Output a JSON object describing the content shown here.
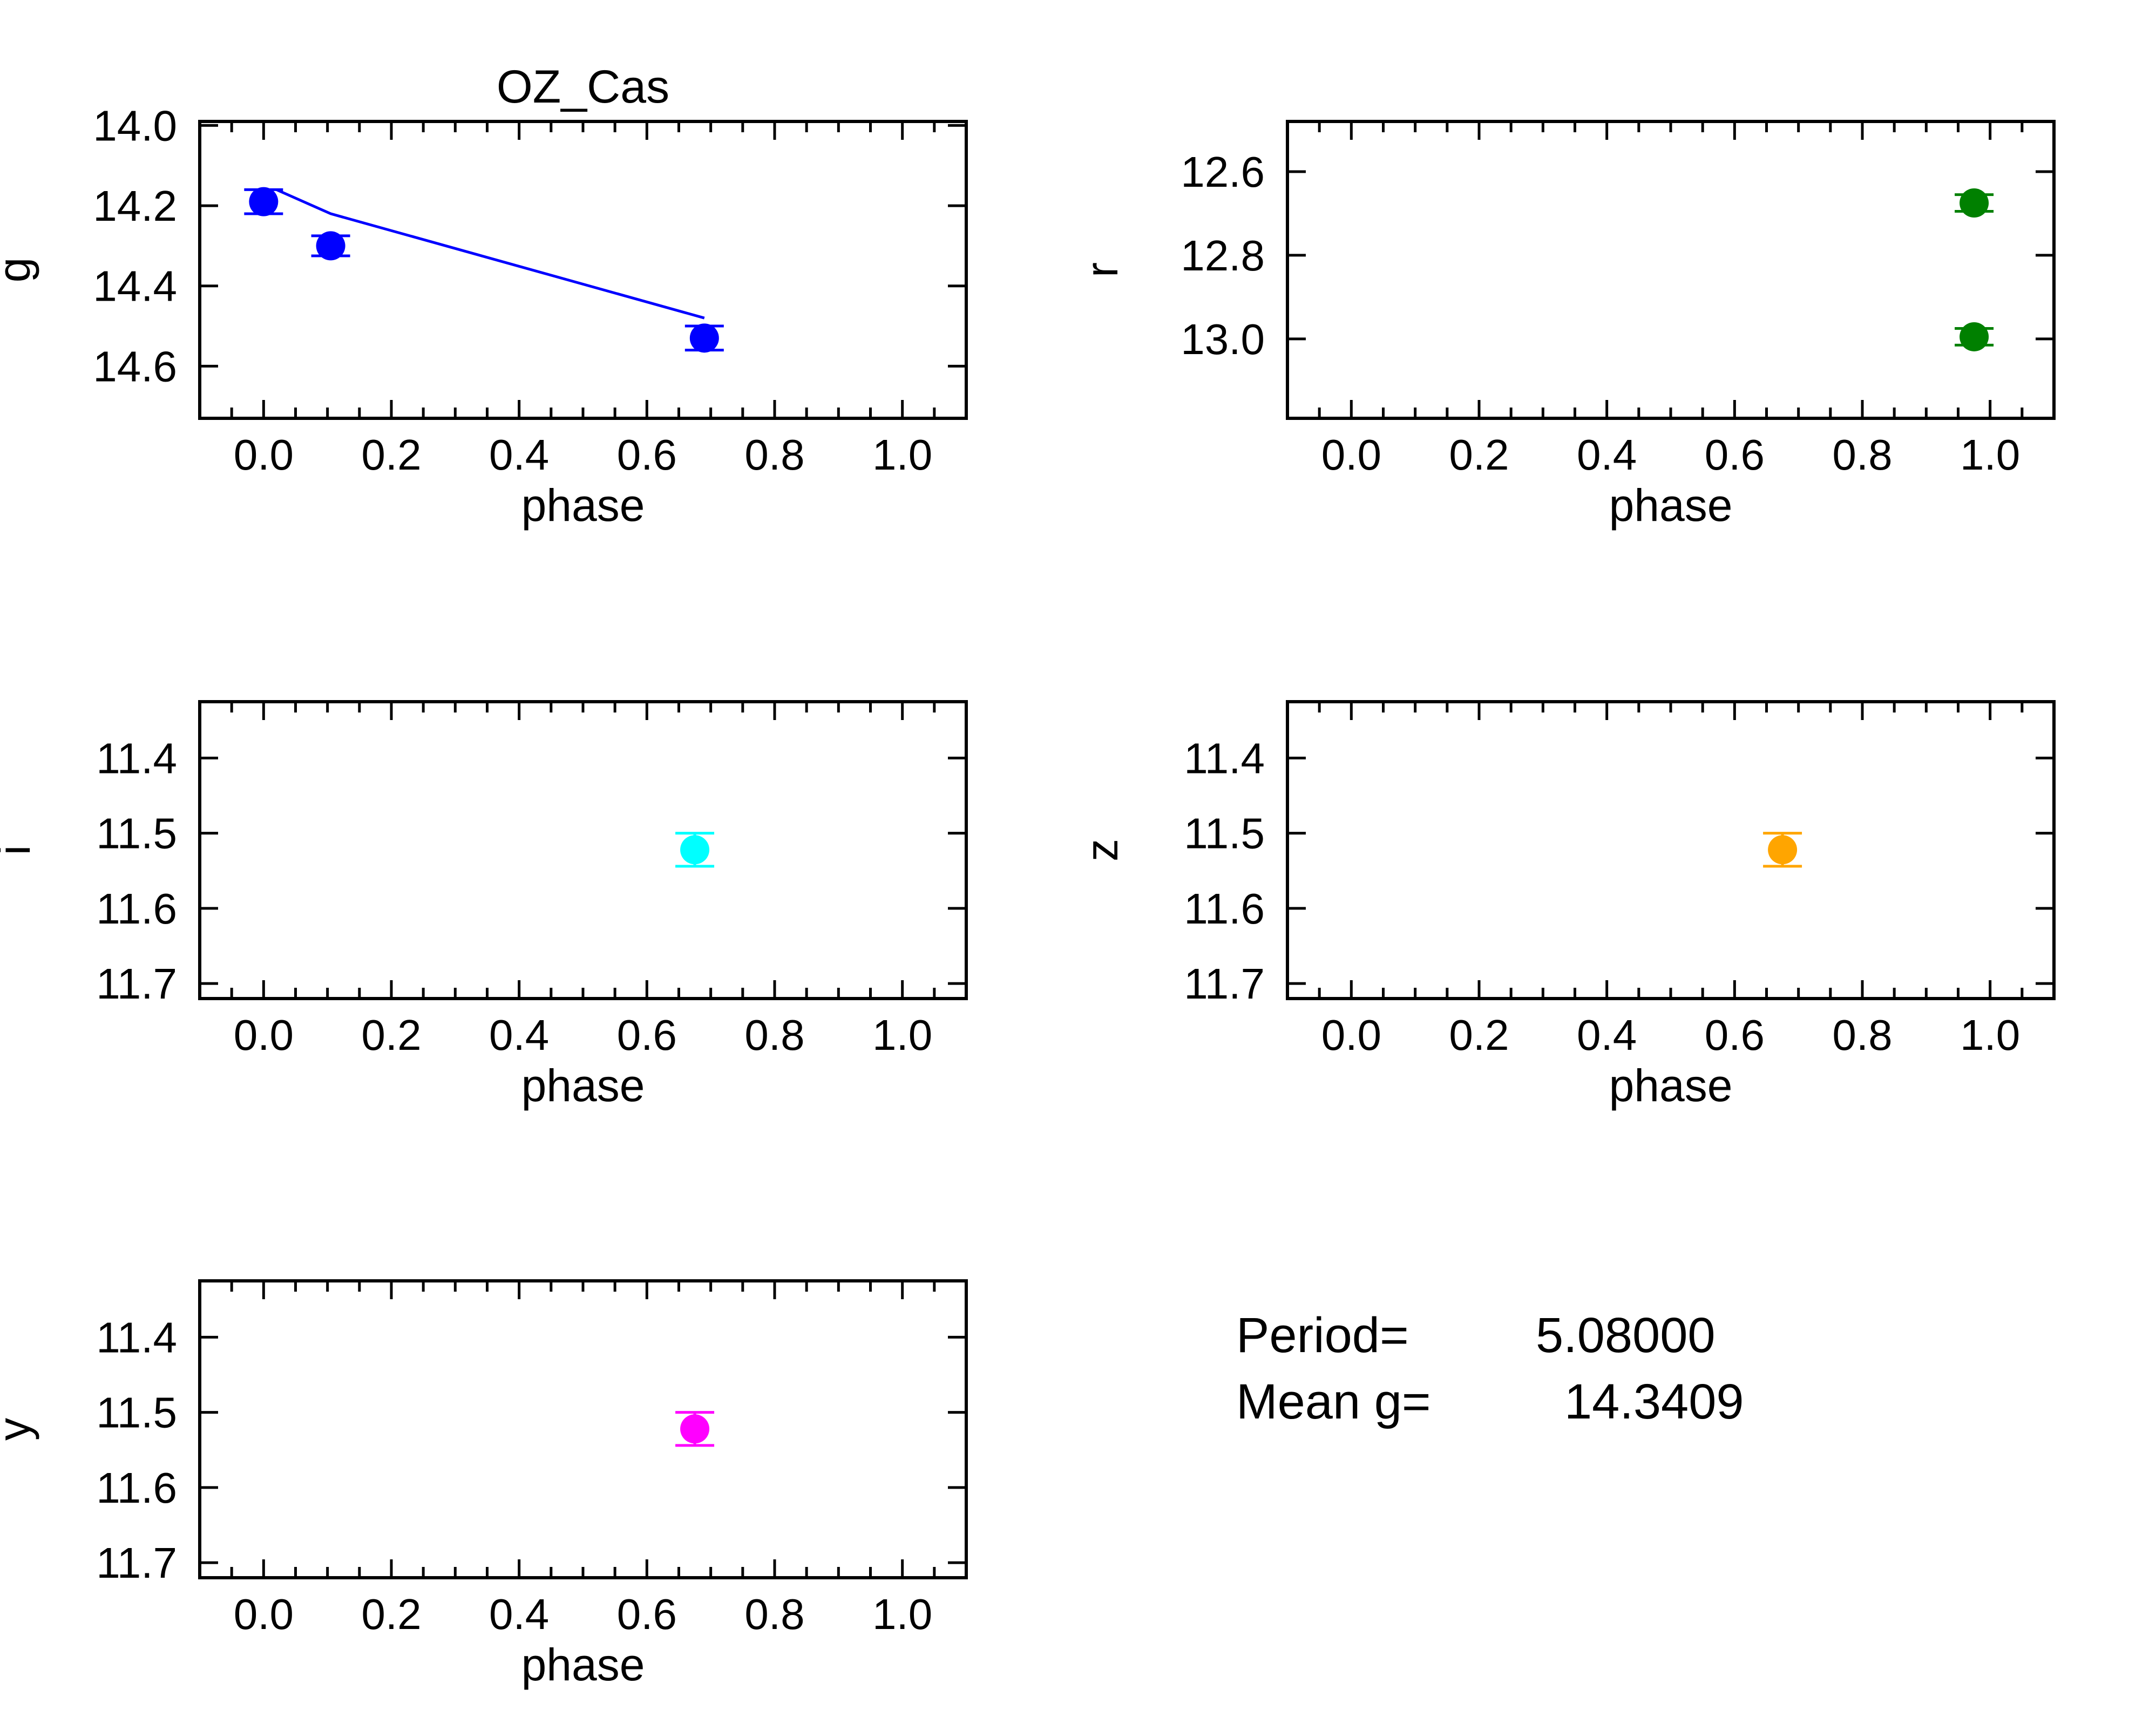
{
  "chart_data": [
    {
      "type": "scatter",
      "id": "g",
      "title": "OZ_Cas",
      "xlabel": "phase",
      "ylabel": "g",
      "xlim": [
        -0.1,
        1.1
      ],
      "ylim": [
        14.73,
        13.99
      ],
      "y_inverted": true,
      "xticks": [
        "0.0",
        "0.2",
        "0.4",
        "0.6",
        "0.8",
        "1.0"
      ],
      "yticks": [
        "14.0",
        "14.2",
        "14.4",
        "14.6"
      ],
      "color": "#0000ff",
      "points": [
        {
          "x": 0.0,
          "y": 14.19,
          "err": 0.03
        },
        {
          "x": 0.105,
          "y": 14.3,
          "err": 0.025
        },
        {
          "x": 0.69,
          "y": 14.53,
          "err": 0.03
        }
      ],
      "fit_line": [
        {
          "x": 0.02,
          "y": 14.16
        },
        {
          "x": 0.105,
          "y": 14.22
        },
        {
          "x": 0.69,
          "y": 14.48
        }
      ]
    },
    {
      "type": "scatter",
      "id": "r",
      "title": "",
      "xlabel": "phase",
      "ylabel": "r",
      "xlim": [
        -0.1,
        1.1
      ],
      "ylim": [
        13.19,
        12.48
      ],
      "y_inverted": true,
      "xticks": [
        "0.0",
        "0.2",
        "0.4",
        "0.6",
        "0.8",
        "1.0"
      ],
      "yticks": [
        "12.6",
        "12.8",
        "13.0"
      ],
      "color": "#008000",
      "points": [
        {
          "x": 0.975,
          "y": 12.675,
          "err": 0.02
        },
        {
          "x": 0.975,
          "y": 12.995,
          "err": 0.02
        }
      ]
    },
    {
      "type": "scatter",
      "id": "i",
      "title": "",
      "xlabel": "phase",
      "ylabel": "i",
      "xlim": [
        -0.1,
        1.1
      ],
      "ylim": [
        11.72,
        11.325
      ],
      "y_inverted": true,
      "xticks": [
        "0.0",
        "0.2",
        "0.4",
        "0.6",
        "0.8",
        "1.0"
      ],
      "yticks": [
        "11.4",
        "11.5",
        "11.6",
        "11.7"
      ],
      "color": "#00ffff",
      "points": [
        {
          "x": 0.675,
          "y": 11.522,
          "err": 0.022
        }
      ]
    },
    {
      "type": "scatter",
      "id": "z",
      "title": "",
      "xlabel": "phase",
      "ylabel": "z",
      "xlim": [
        -0.1,
        1.1
      ],
      "ylim": [
        11.72,
        11.325
      ],
      "y_inverted": true,
      "xticks": [
        "0.0",
        "0.2",
        "0.4",
        "0.6",
        "0.8",
        "1.0"
      ],
      "yticks": [
        "11.4",
        "11.5",
        "11.6",
        "11.7"
      ],
      "color": "#ffa500",
      "points": [
        {
          "x": 0.675,
          "y": 11.522,
          "err": 0.022
        }
      ]
    },
    {
      "type": "scatter",
      "id": "y",
      "title": "",
      "xlabel": "phase",
      "ylabel": "y",
      "xlim": [
        -0.1,
        1.1
      ],
      "ylim": [
        11.72,
        11.325
      ],
      "y_inverted": true,
      "xticks": [
        "0.0",
        "0.2",
        "0.4",
        "0.6",
        "0.8",
        "1.0"
      ],
      "yticks": [
        "11.4",
        "11.5",
        "11.6",
        "11.7"
      ],
      "color": "#ff00ff",
      "points": [
        {
          "x": 0.675,
          "y": 11.522,
          "err": 0.022
        }
      ]
    }
  ],
  "info": {
    "period_label": "Period=",
    "period_value": "5.08000",
    "mean_label": "Mean g=",
    "mean_value": "14.3409"
  }
}
